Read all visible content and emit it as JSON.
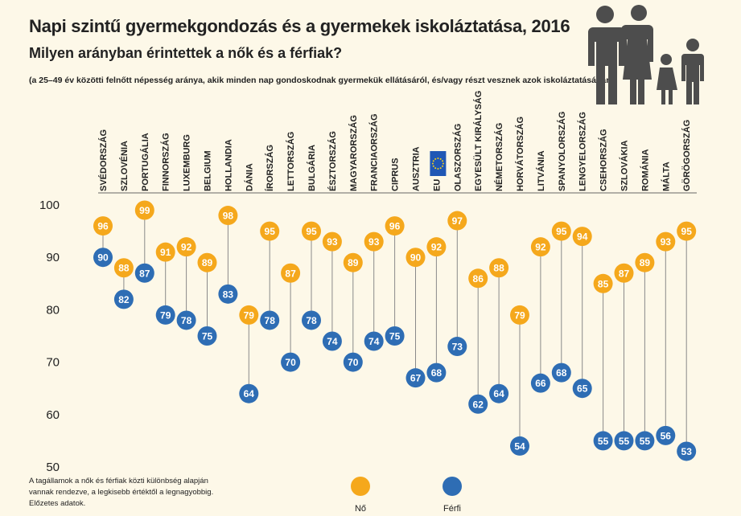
{
  "header": {
    "title": "Napi szintű gyermekgondozás és a gyermekek iskoláztatása, 2016",
    "subtitle": "Milyen arányban érintettek a nők és a férfiak?",
    "note": "(a 25–49 év közötti felnőtt népesség aránya, akik minden nap gondoskodnak gyermekük ellátásáról, és/vagy részt vesznek azok iskoláztatásában)"
  },
  "footnote": "A tagállamok a nők és férfiak közti különbség alapján vannak rendezve, a legkisebb értéktől a legnagyobbig. Előzetes adatok.",
  "colors": {
    "women": "#f5a81c",
    "men": "#2e6db4",
    "line": "#8a8a8a",
    "eu_flag": "#1f57b5",
    "eu_stars": "#f7d117",
    "people": "#4d4d4d"
  },
  "illustration_icon": "family-icon",
  "chart_data": {
    "type": "dot",
    "title": "Napi szintű gyermekgondozás és a gyermekek iskoláztatása, 2016",
    "ylim": [
      50,
      100
    ],
    "yticks": [
      50,
      60,
      70,
      80,
      90,
      100
    ],
    "grid": false,
    "legend": "bottom-center",
    "categories": [
      "SVÉDORSZÁG",
      "SZLOVÉNIA",
      "PORTUGÁLIA",
      "FINNORSZÁG",
      "LUXEMBURG",
      "BELGIUM",
      "HOLLANDIA",
      "DÁNIA",
      "ÍRORSZÁG",
      "LETTORSZÁG",
      "BULGÁRIA",
      "ÉSZTORSZÁG",
      "MAGYARORSZÁG",
      "FRANCIAORSZÁG",
      "CIPRUS",
      "AUSZTRIA",
      "EU",
      "OLASZORSZÁG",
      "EGYESÜLT KIRÁLYSÁG",
      "NÉMETORSZÁG",
      "HORVÁTORSZÁG",
      "LITVÁNIA",
      "SPANYOLORSZÁG",
      "LENGYELORSZÁG",
      "CSEHORSZÁG",
      "SZLOVÁKIA",
      "ROMÁNIA",
      "MÁLTA",
      "GÖRÖGORSZÁG"
    ],
    "series": [
      {
        "name": "Nő",
        "color": "#f5a81c",
        "values": [
          96,
          88,
          99,
          91,
          92,
          89,
          98,
          79,
          95,
          87,
          95,
          93,
          89,
          93,
          96,
          90,
          92,
          97,
          86,
          88,
          79,
          92,
          95,
          94,
          85,
          87,
          89,
          93,
          95
        ]
      },
      {
        "name": "Férfi",
        "color": "#2e6db4",
        "values": [
          90,
          82,
          87,
          79,
          78,
          75,
          83,
          64,
          78,
          70,
          78,
          74,
          70,
          74,
          75,
          67,
          68,
          73,
          62,
          64,
          54,
          66,
          68,
          65,
          55,
          55,
          55,
          56,
          53
        ]
      }
    ]
  }
}
